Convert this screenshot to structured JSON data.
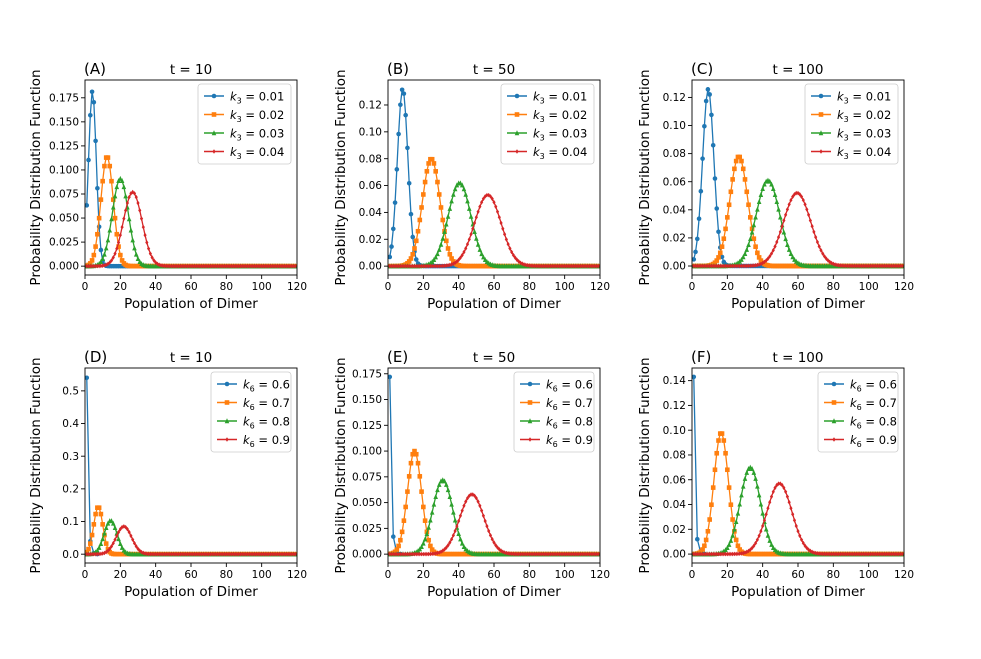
{
  "colors": [
    "#1f77b4",
    "#ff7f0e",
    "#2ca02c",
    "#d62728"
  ],
  "chart_data": [
    {
      "type": "line",
      "panel_label": "(A)",
      "title": "t = 10",
      "xlabel": "Population of Dimer",
      "ylabel": "Probability Distribution Function",
      "xlim": [
        0,
        120
      ],
      "ylim": [
        -0.0092,
        0.1935
      ],
      "xticks": [
        "0",
        "20",
        "40",
        "60",
        "80",
        "100",
        "120"
      ],
      "yticks": [
        "0.000",
        "0.025",
        "0.050",
        "0.075",
        "0.100",
        "0.125",
        "0.150",
        "0.175"
      ],
      "grid": false,
      "legend": "top-right",
      "series": [
        {
          "legend_prefix": "k",
          "legend_sub": "3",
          "legend_suffix": " = 0.01",
          "marker": "circle",
          "mean": 4.2,
          "sd": 2.2,
          "peak": 0.182
        },
        {
          "legend_prefix": "k",
          "legend_sub": "3",
          "legend_suffix": " = 0.02",
          "marker": "square",
          "mean": 12.5,
          "sd": 3.5,
          "peak": 0.114
        },
        {
          "legend_prefix": "k",
          "legend_sub": "3",
          "legend_suffix": " = 0.03",
          "marker": "triangle",
          "mean": 20,
          "sd": 4.5,
          "peak": 0.091
        },
        {
          "legend_prefix": "k",
          "legend_sub": "3",
          "legend_suffix": " = 0.04",
          "marker": "diamond",
          "mean": 27,
          "sd": 5.3,
          "peak": 0.077
        }
      ]
    },
    {
      "type": "line",
      "panel_label": "(B)",
      "title": "t = 50",
      "xlabel": "Population of Dimer",
      "ylabel": "Probability Distribution Function",
      "xlim": [
        0,
        120
      ],
      "ylim": [
        -0.0066,
        0.1386
      ],
      "xticks": [
        "0",
        "20",
        "40",
        "60",
        "80",
        "100",
        "120"
      ],
      "yticks": [
        "0.00",
        "0.02",
        "0.04",
        "0.06",
        "0.08",
        "0.10",
        "0.12"
      ],
      "grid": false,
      "legend": "top-right",
      "series": [
        {
          "legend_prefix": "k",
          "legend_sub": "3",
          "legend_suffix": " = 0.01",
          "marker": "circle",
          "mean": 8.3,
          "sd": 3.0,
          "peak": 0.132
        },
        {
          "legend_prefix": "k",
          "legend_sub": "3",
          "legend_suffix": " = 0.02",
          "marker": "square",
          "mean": 24.5,
          "sd": 5.0,
          "peak": 0.08
        },
        {
          "legend_prefix": "k",
          "legend_sub": "3",
          "legend_suffix": " = 0.03",
          "marker": "triangle",
          "mean": 40.5,
          "sd": 6.4,
          "peak": 0.062
        },
        {
          "legend_prefix": "k",
          "legend_sub": "3",
          "legend_suffix": " = 0.04",
          "marker": "diamond",
          "mean": 56.5,
          "sd": 7.5,
          "peak": 0.053
        }
      ]
    },
    {
      "type": "line",
      "panel_label": "(C)",
      "title": "t = 100",
      "xlabel": "Population of Dimer",
      "ylabel": "Probability Distribution Function",
      "xlim": [
        0,
        120
      ],
      "ylim": [
        -0.0064,
        0.1324
      ],
      "xticks": [
        "0",
        "20",
        "40",
        "60",
        "80",
        "100",
        "120"
      ],
      "yticks": [
        "0.00",
        "0.02",
        "0.04",
        "0.06",
        "0.08",
        "0.10",
        "0.12"
      ],
      "grid": false,
      "legend": "top-right",
      "series": [
        {
          "legend_prefix": "k",
          "legend_sub": "3",
          "legend_suffix": " = 0.01",
          "marker": "circle",
          "mean": 9.2,
          "sd": 3.2,
          "peak": 0.126
        },
        {
          "legend_prefix": "k",
          "legend_sub": "3",
          "legend_suffix": " = 0.02",
          "marker": "square",
          "mean": 26.5,
          "sd": 5.1,
          "peak": 0.078
        },
        {
          "legend_prefix": "k",
          "legend_sub": "3",
          "legend_suffix": " = 0.03",
          "marker": "triangle",
          "mean": 43,
          "sd": 6.6,
          "peak": 0.061
        },
        {
          "legend_prefix": "k",
          "legend_sub": "3",
          "legend_suffix": " = 0.04",
          "marker": "diamond",
          "mean": 59.5,
          "sd": 7.7,
          "peak": 0.052
        }
      ]
    },
    {
      "type": "line",
      "panel_label": "(D)",
      "title": "t = 10",
      "xlabel": "Population of Dimer",
      "ylabel": "Probability Distribution Function",
      "xlim": [
        0,
        120
      ],
      "ylim": [
        -0.027,
        0.57
      ],
      "xticks": [
        "0",
        "20",
        "40",
        "60",
        "80",
        "100",
        "120"
      ],
      "yticks": [
        "0.0",
        "0.1",
        "0.2",
        "0.3",
        "0.4",
        "0.5"
      ],
      "grid": false,
      "legend": "top-right",
      "series": [
        {
          "legend_prefix": "k",
          "legend_sub": "6",
          "legend_suffix": " = 0.6",
          "marker": "circle",
          "points": [
            [
              1,
              0.54
            ],
            [
              3,
              0.04
            ],
            [
              5,
              0.003
            ],
            [
              7,
              0.0002
            ]
          ]
        },
        {
          "legend_prefix": "k",
          "legend_sub": "6",
          "legend_suffix": " = 0.7",
          "marker": "square",
          "mean": 7.5,
          "sd": 2.6,
          "peak": 0.145
        },
        {
          "legend_prefix": "k",
          "legend_sub": "6",
          "legend_suffix": " = 0.8",
          "marker": "triangle",
          "mean": 14.5,
          "sd": 3.6,
          "peak": 0.103
        },
        {
          "legend_prefix": "k",
          "legend_sub": "6",
          "legend_suffix": " = 0.9",
          "marker": "diamond",
          "mean": 22,
          "sd": 4.4,
          "peak": 0.085
        }
      ]
    },
    {
      "type": "line",
      "panel_label": "(E)",
      "title": "t = 50",
      "xlabel": "Population of Dimer",
      "ylabel": "Probability Distribution Function",
      "xlim": [
        0,
        120
      ],
      "ylim": [
        -0.0086,
        0.1806
      ],
      "xticks": [
        "0",
        "20",
        "40",
        "60",
        "80",
        "100",
        "120"
      ],
      "yticks": [
        "0.000",
        "0.025",
        "0.050",
        "0.075",
        "0.100",
        "0.125",
        "0.150",
        "0.175"
      ],
      "grid": false,
      "legend": "top-right",
      "series": [
        {
          "legend_prefix": "k",
          "legend_sub": "6",
          "legend_suffix": " = 0.6",
          "marker": "circle",
          "points": [
            [
              1,
              0.172
            ],
            [
              3,
              0.017
            ],
            [
              5,
              0.001
            ],
            [
              7,
              0.0001
            ]
          ]
        },
        {
          "legend_prefix": "k",
          "legend_sub": "6",
          "legend_suffix": " = 0.7",
          "marker": "square",
          "mean": 15,
          "sd": 4.0,
          "peak": 0.1
        },
        {
          "legend_prefix": "k",
          "legend_sub": "6",
          "legend_suffix": " = 0.8",
          "marker": "triangle",
          "mean": 31,
          "sd": 5.6,
          "peak": 0.072
        },
        {
          "legend_prefix": "k",
          "legend_sub": "6",
          "legend_suffix": " = 0.9",
          "marker": "diamond",
          "mean": 47.5,
          "sd": 6.9,
          "peak": 0.058
        }
      ]
    },
    {
      "type": "line",
      "panel_label": "(F)",
      "title": "t = 100",
      "xlabel": "Population of Dimer",
      "ylabel": "Probability Distribution Function",
      "xlim": [
        0,
        120
      ],
      "ylim": [
        -0.0072,
        0.1502
      ],
      "xticks": [
        "0",
        "20",
        "40",
        "60",
        "80",
        "100",
        "120"
      ],
      "yticks": [
        "0.00",
        "0.02",
        "0.04",
        "0.06",
        "0.08",
        "0.10",
        "0.12",
        "0.14"
      ],
      "grid": false,
      "legend": "top-right",
      "series": [
        {
          "legend_prefix": "k",
          "legend_sub": "6",
          "legend_suffix": " = 0.6",
          "marker": "circle",
          "points": [
            [
              1,
              0.143
            ],
            [
              3,
              0.012
            ],
            [
              5,
              0.0008
            ],
            [
              7,
              0.0001
            ]
          ]
        },
        {
          "legend_prefix": "k",
          "legend_sub": "6",
          "legend_suffix": " = 0.7",
          "marker": "square",
          "mean": 16.5,
          "sd": 4.1,
          "peak": 0.098
        },
        {
          "legend_prefix": "k",
          "legend_sub": "6",
          "legend_suffix": " = 0.8",
          "marker": "triangle",
          "mean": 33,
          "sd": 5.7,
          "peak": 0.07
        },
        {
          "legend_prefix": "k",
          "legend_sub": "6",
          "legend_suffix": " = 0.9",
          "marker": "diamond",
          "mean": 49.5,
          "sd": 7.0,
          "peak": 0.057
        }
      ]
    }
  ]
}
